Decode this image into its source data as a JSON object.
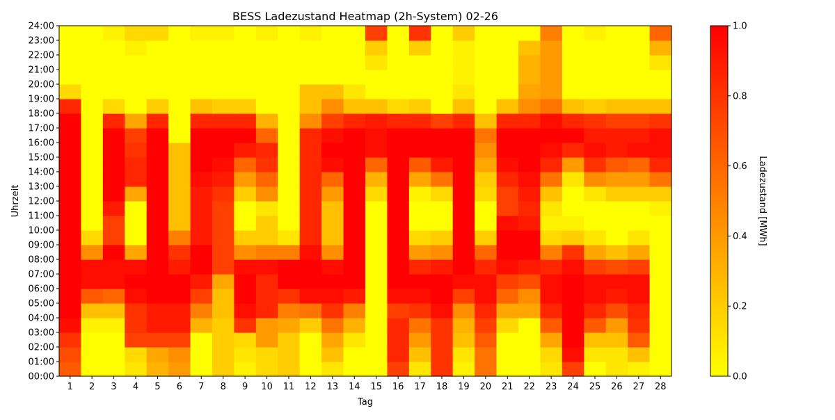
{
  "chart_data": {
    "type": "heatmap",
    "title": "BESS Ladezustand Heatmap (2h-System) 02-26",
    "xlabel": "Tag",
    "ylabel": "Uhrzeit",
    "x_categories": [
      "1",
      "2",
      "3",
      "4",
      "5",
      "6",
      "7",
      "8",
      "9",
      "10",
      "11",
      "12",
      "13",
      "14",
      "15",
      "16",
      "17",
      "18",
      "19",
      "20",
      "21",
      "22",
      "23",
      "24",
      "25",
      "26",
      "27",
      "28"
    ],
    "y_ticks": [
      "00:00",
      "01:00",
      "02:00",
      "03:00",
      "04:00",
      "05:00",
      "06:00",
      "07:00",
      "08:00",
      "09:00",
      "10:00",
      "11:00",
      "12:00",
      "13:00",
      "14:00",
      "15:00",
      "16:00",
      "17:00",
      "18:00",
      "19:00",
      "20:00",
      "21:00",
      "22:00",
      "23:00",
      "24:00"
    ],
    "colorbar": {
      "label": "Ladezustand [MWh]",
      "min": 0.0,
      "max": 1.0,
      "ticks": [
        "0.0",
        "0.2",
        "0.4",
        "0.6",
        "0.8",
        "1.0"
      ]
    },
    "colormap": [
      "#ffff00",
      "#ffc000",
      "#ff8000",
      "#ff4000",
      "#ff0000"
    ],
    "hours_per_day": 24,
    "values": [
      [
        0.65,
        0.7,
        0.8,
        0.95,
        1,
        1,
        1,
        1,
        1,
        1,
        1,
        1,
        1,
        1,
        1,
        1,
        1,
        1,
        0.85,
        0.15,
        0,
        0,
        0,
        0
      ],
      [
        0,
        0,
        0,
        0.05,
        0.25,
        0.65,
        0.95,
        0.95,
        0.45,
        0.15,
        0,
        0,
        0,
        0,
        0,
        0,
        0,
        0,
        0,
        0,
        0,
        0,
        0,
        0
      ],
      [
        0,
        0,
        0,
        0.05,
        0.25,
        0.6,
        0.95,
        0.95,
        1,
        0.75,
        0.75,
        0.9,
        1,
        1,
        1,
        1,
        1,
        0.85,
        0.15,
        0,
        0,
        0,
        0,
        0.05
      ],
      [
        0.1,
        0.15,
        0.75,
        0.8,
        0.8,
        0.95,
        1,
        0.95,
        0.35,
        0,
        0,
        0,
        0.35,
        0.85,
        0.85,
        0.8,
        0.75,
        0.35,
        0,
        0,
        0,
        0,
        0.05,
        0.15
      ],
      [
        0.3,
        0.35,
        0.75,
        0.9,
        0.9,
        1,
        1,
        1,
        1,
        1,
        1,
        1,
        1,
        1,
        1,
        1,
        1,
        0.85,
        0.2,
        0,
        0,
        0,
        0,
        0.15
      ],
      [
        0.4,
        0.45,
        0.75,
        0.9,
        0.9,
        1,
        1,
        0.9,
        0.8,
        0.5,
        0.25,
        0.25,
        0.25,
        0.25,
        0.25,
        0.25,
        0,
        0,
        0,
        0,
        0,
        0,
        0,
        0
      ],
      [
        0,
        0,
        0,
        0.3,
        0.5,
        0.75,
        0.9,
        1,
        1,
        0.9,
        0.9,
        0.9,
        0.9,
        0.95,
        1,
        1,
        1,
        0.85,
        0.25,
        0,
        0,
        0,
        0,
        0.05
      ],
      [
        0.2,
        0.2,
        0.2,
        0.2,
        0.25,
        0.25,
        0.35,
        0.75,
        0.75,
        0.75,
        0.75,
        0.75,
        0.8,
        0.9,
        0.95,
        1,
        1,
        0.85,
        0.2,
        0,
        0,
        0,
        0,
        0.05
      ],
      [
        0.05,
        0.1,
        0.15,
        0.8,
        0.95,
        1,
        1,
        0.95,
        0.45,
        0.2,
        0,
        0,
        0.2,
        0.4,
        0.6,
        0.9,
        1,
        0.85,
        0.2,
        0,
        0,
        0,
        0,
        0
      ],
      [
        0.15,
        0.15,
        0.4,
        0.4,
        0.85,
        0.85,
        0.85,
        0.95,
        0.5,
        0.2,
        0.2,
        0.1,
        0.45,
        0.6,
        0.8,
        0.85,
        0.6,
        0.3,
        0,
        0,
        0,
        0,
        0,
        0.05
      ],
      [
        0.2,
        0.2,
        0.2,
        0.35,
        0.5,
        0.8,
        1,
        1,
        0.5,
        0.1,
        0,
        0,
        0,
        0,
        0,
        0,
        0,
        0,
        0,
        0,
        0,
        0,
        0,
        0
      ],
      [
        0,
        0,
        0,
        0.2,
        0.55,
        0.95,
        1,
        1,
        0.95,
        0.85,
        0.85,
        0.85,
        0.85,
        0.85,
        0.85,
        0.85,
        0.85,
        0.45,
        0.25,
        0.25,
        0,
        0,
        0,
        0.05
      ],
      [
        0.1,
        0.25,
        0.35,
        0.55,
        0.8,
        0.95,
        1,
        0.95,
        0.45,
        0.25,
        0.25,
        0.25,
        0.4,
        0.6,
        0.95,
        1,
        0.95,
        0.75,
        0.45,
        0.25,
        0,
        0,
        0,
        0
      ],
      [
        0,
        0,
        0.1,
        0.3,
        0.5,
        0.9,
        1,
        1,
        1,
        1,
        1,
        1,
        1,
        1,
        1,
        1,
        1,
        0.85,
        0.25,
        0.1,
        0,
        0,
        0,
        0
      ],
      [
        0,
        0,
        0,
        0,
        0,
        0,
        0,
        0,
        0,
        0,
        0,
        0,
        0.15,
        0.3,
        0.6,
        0.95,
        0.95,
        0.9,
        0.25,
        0,
        0,
        0.1,
        0.2,
        0.75
      ],
      [
        0.75,
        0.85,
        0.85,
        0.85,
        0.75,
        0.95,
        1,
        1,
        1,
        1,
        1,
        1,
        1,
        1,
        1,
        1,
        1,
        0.85,
        0.15,
        0,
        0,
        0,
        0,
        0
      ],
      [
        0.1,
        0.25,
        0.4,
        0.55,
        0.8,
        0.95,
        1,
        0.85,
        0.4,
        0.15,
        0,
        0,
        0.05,
        0.35,
        0.65,
        1,
        1,
        0.85,
        0.2,
        0,
        0,
        0,
        0.2,
        0.8
      ],
      [
        0.8,
        0.8,
        0.8,
        0.8,
        0.95,
        1,
        1,
        0.9,
        0.45,
        0.2,
        0,
        0,
        0.15,
        0.55,
        0.9,
        1,
        1,
        0.75,
        0,
        0,
        0,
        0,
        0,
        0
      ],
      [
        0.05,
        0.1,
        0.25,
        0.3,
        0.45,
        0.75,
        0.95,
        1,
        1,
        1,
        1,
        1,
        1,
        1,
        1,
        1,
        1,
        0.85,
        0.25,
        0.1,
        0.05,
        0.05,
        0.05,
        0.2
      ],
      [
        0.55,
        0.55,
        0.65,
        0.75,
        0.85,
        0.95,
        0.95,
        0.85,
        0.6,
        0.2,
        0,
        0,
        0.15,
        0.2,
        0.35,
        0.45,
        0.55,
        0.25,
        0,
        0,
        0,
        0,
        0,
        0
      ],
      [
        0,
        0,
        0,
        0.15,
        0.35,
        0.6,
        0.75,
        0.95,
        1,
        1,
        0.95,
        0.75,
        0.75,
        0.85,
        0.95,
        1,
        1,
        0.85,
        0.25,
        0,
        0,
        0,
        0,
        0
      ],
      [
        0,
        0,
        0,
        0,
        0.35,
        0.45,
        0.7,
        0.9,
        1,
        1,
        0.9,
        0.85,
        0.9,
        0.95,
        1,
        1,
        1,
        0.85,
        0.45,
        0.35,
        0.3,
        0.3,
        0.25,
        0
      ],
      [
        0.1,
        0.15,
        0.35,
        0.65,
        0.85,
        0.95,
        0.95,
        0.85,
        0.5,
        0.15,
        0.05,
        0.1,
        0.25,
        0.55,
        0.85,
        0.95,
        1,
        0.95,
        0.55,
        0.4,
        0.4,
        0.4,
        0.4,
        0.5
      ],
      [
        0.75,
        0.95,
        1,
        1,
        1,
        1,
        1,
        0.95,
        0.8,
        0.2,
        0.05,
        0,
        0,
        0.1,
        0.4,
        0.85,
        1,
        0.85,
        0.25,
        0,
        0,
        0,
        0,
        0
      ],
      [
        0,
        0.1,
        0.25,
        0.65,
        0.85,
        0.95,
        0.95,
        0.75,
        0.35,
        0.1,
        0,
        0,
        0.1,
        0.45,
        0.8,
        0.95,
        0.9,
        0.8,
        0.2,
        0,
        0,
        0,
        0,
        0.05
      ],
      [
        0.1,
        0.1,
        0.25,
        0.4,
        0.7,
        0.9,
        0.95,
        0.7,
        0.25,
        0,
        0,
        0,
        0.2,
        0.4,
        0.65,
        0.9,
        0.9,
        0.75,
        0.25,
        0,
        0,
        0,
        0,
        0
      ],
      [
        0.05,
        0.25,
        0.65,
        0.8,
        0.85,
        0.95,
        0.95,
        0.75,
        0.35,
        0.1,
        0,
        0,
        0.2,
        0.4,
        0.6,
        0.95,
        0.9,
        0.75,
        0.25,
        0,
        0,
        0,
        0,
        0
      ],
      [
        0,
        0,
        0,
        0,
        0,
        0,
        0,
        0,
        0,
        0,
        0,
        0.05,
        0.2,
        0.55,
        0.85,
        0.95,
        0.95,
        0.8,
        0.25,
        0,
        0,
        0.1,
        0.3,
        0.6
      ]
    ]
  }
}
